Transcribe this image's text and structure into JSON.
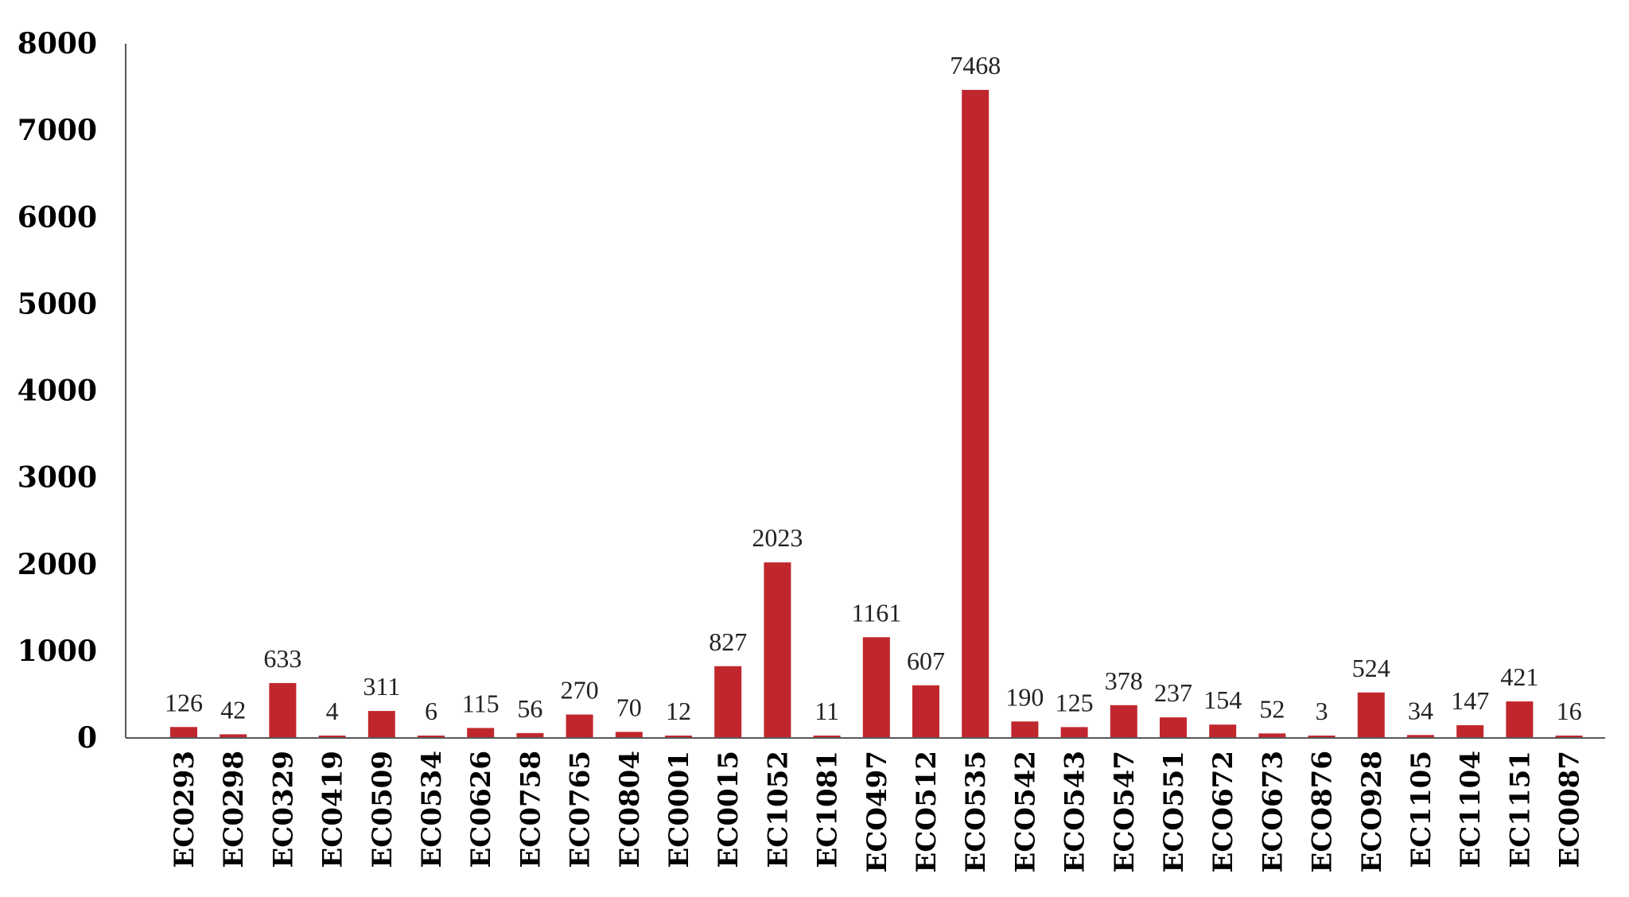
{
  "chart_data": {
    "type": "bar",
    "categories": [
      "EC0293",
      "EC0298",
      "EC0329",
      "EC0419",
      "EC0509",
      "EC0534",
      "EC0626",
      "EC0758",
      "EC0765",
      "EC0804",
      "EC0001",
      "EC0015",
      "EC1052",
      "EC1081",
      "ECO497",
      "ECO512",
      "ECO535",
      "ECO542",
      "ECO543",
      "ECO547",
      "ECO551",
      "ECO672",
      "ECO673",
      "ECO876",
      "ECO928",
      "EC1105",
      "EC1104",
      "EC1151",
      "EC0087"
    ],
    "values": [
      126,
      42,
      633,
      4,
      311,
      6,
      115,
      56,
      270,
      70,
      12,
      827,
      2023,
      11,
      1161,
      607,
      7468,
      190,
      125,
      378,
      237,
      154,
      52,
      3,
      524,
      34,
      147,
      421,
      16
    ],
    "data_labels": [
      "126",
      "42",
      "633",
      "4",
      "311",
      "6",
      "115",
      "56",
      "270",
      "70",
      "12",
      "827",
      "2023",
      "11",
      "1161",
      "607",
      "7468",
      "190",
      "125",
      "378",
      "237",
      "154",
      "52",
      "3",
      "524",
      "34",
      "147",
      "421",
      "16"
    ],
    "ylim": [
      0,
      8000
    ],
    "yticks": [
      "0",
      "1000",
      "2000",
      "3000",
      "4000",
      "5000",
      "6000",
      "7000",
      "8000"
    ],
    "title": "",
    "xlabel": "",
    "ylabel": "",
    "grid": false,
    "legend": "none",
    "colors": {
      "bar": "#c0272d",
      "axis": "#595959"
    }
  }
}
